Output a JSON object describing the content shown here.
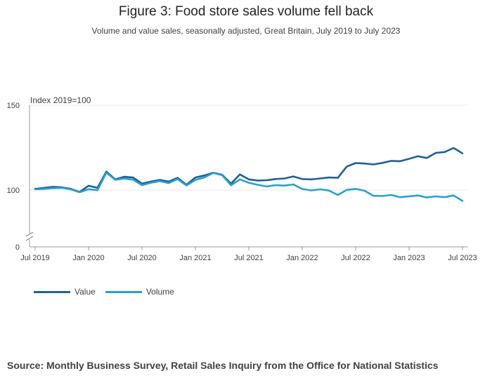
{
  "header": {
    "title": "Figure 3: Food store sales volume fell back",
    "subtitle": "Volume and value sales, seasonally adjusted, Great Britain, July 2019 to July 2023"
  },
  "footer": {
    "source": "Source: Monthly Business Survey, Retail Sales Inquiry from the Office for National Statistics"
  },
  "colors": {
    "value": "#206095",
    "volume": "#27A0CC",
    "grid": "#e8e8e8",
    "axis": "#999999"
  },
  "chart_data": {
    "type": "line",
    "title": "Figure 3: Food store sales volume fell back",
    "ylabel": "Index 2019=100",
    "xlabel": "",
    "ylim": [
      0,
      150
    ],
    "y_ticks": [
      {
        "value": 0,
        "label": "0"
      },
      {
        "value": 100,
        "label": "100"
      },
      {
        "value": 150,
        "label": "150"
      }
    ],
    "axis_break": true,
    "x_ticks": [
      {
        "index": 0,
        "label": "Jul 2019"
      },
      {
        "index": 6,
        "label": "Jan 2020"
      },
      {
        "index": 12,
        "label": "Jul 2020"
      },
      {
        "index": 18,
        "label": "Jan 2021"
      },
      {
        "index": 24,
        "label": "Jul 2021"
      },
      {
        "index": 30,
        "label": "Jan 2022"
      },
      {
        "index": 36,
        "label": "Jul 2022"
      },
      {
        "index": 42,
        "label": "Jan 2023"
      },
      {
        "index": 48,
        "label": "Jul 2023"
      }
    ],
    "x": [
      "Jul 2019",
      "Aug 2019",
      "Sep 2019",
      "Oct 2019",
      "Nov 2019",
      "Dec 2019",
      "Jan 2020",
      "Feb 2020",
      "Mar 2020",
      "Apr 2020",
      "May 2020",
      "Jun 2020",
      "Jul 2020",
      "Aug 2020",
      "Sep 2020",
      "Oct 2020",
      "Nov 2020",
      "Dec 2020",
      "Jan 2021",
      "Feb 2021",
      "Mar 2021",
      "Apr 2021",
      "May 2021",
      "Jun 2021",
      "Jul 2021",
      "Aug 2021",
      "Sep 2021",
      "Oct 2021",
      "Nov 2021",
      "Dec 2021",
      "Jan 2022",
      "Feb 2022",
      "Mar 2022",
      "Apr 2022",
      "May 2022",
      "Jun 2022",
      "Jul 2022",
      "Aug 2022",
      "Sep 2022",
      "Oct 2022",
      "Nov 2022",
      "Dec 2022",
      "Jan 2023",
      "Feb 2023",
      "Mar 2023",
      "Apr 2023",
      "May 2023",
      "Jun 2023",
      "Jul 2023"
    ],
    "series": [
      {
        "name": "Value",
        "values": [
          100.7,
          101.3,
          101.9,
          101.6,
          100.7,
          98.9,
          102.5,
          101.3,
          110.9,
          106.3,
          107.8,
          107.4,
          103.8,
          105.0,
          106.0,
          105.0,
          107.2,
          103.1,
          107.4,
          108.6,
          110.2,
          109.0,
          103.8,
          109.2,
          106.3,
          105.6,
          105.8,
          106.5,
          106.8,
          108.0,
          106.5,
          106.3,
          106.8,
          107.4,
          107.2,
          113.8,
          115.9,
          115.6,
          115.1,
          116.0,
          117.2,
          117.0,
          118.4,
          119.9,
          118.9,
          121.9,
          122.4,
          124.8,
          121.6
        ]
      },
      {
        "name": "Volume",
        "values": [
          100.4,
          100.7,
          101.1,
          101.3,
          100.4,
          98.7,
          100.5,
          99.9,
          110.3,
          106.0,
          106.8,
          106.1,
          102.9,
          104.3,
          105.3,
          104.1,
          106.5,
          102.7,
          106.0,
          107.4,
          110.1,
          108.8,
          102.8,
          106.3,
          104.3,
          103.1,
          102.1,
          102.9,
          102.6,
          103.3,
          100.6,
          99.8,
          100.4,
          99.7,
          97.1,
          100.1,
          100.7,
          99.6,
          96.6,
          96.5,
          97.1,
          95.8,
          96.3,
          96.8,
          95.6,
          96.3,
          95.8,
          96.8,
          93.6
        ]
      }
    ]
  }
}
